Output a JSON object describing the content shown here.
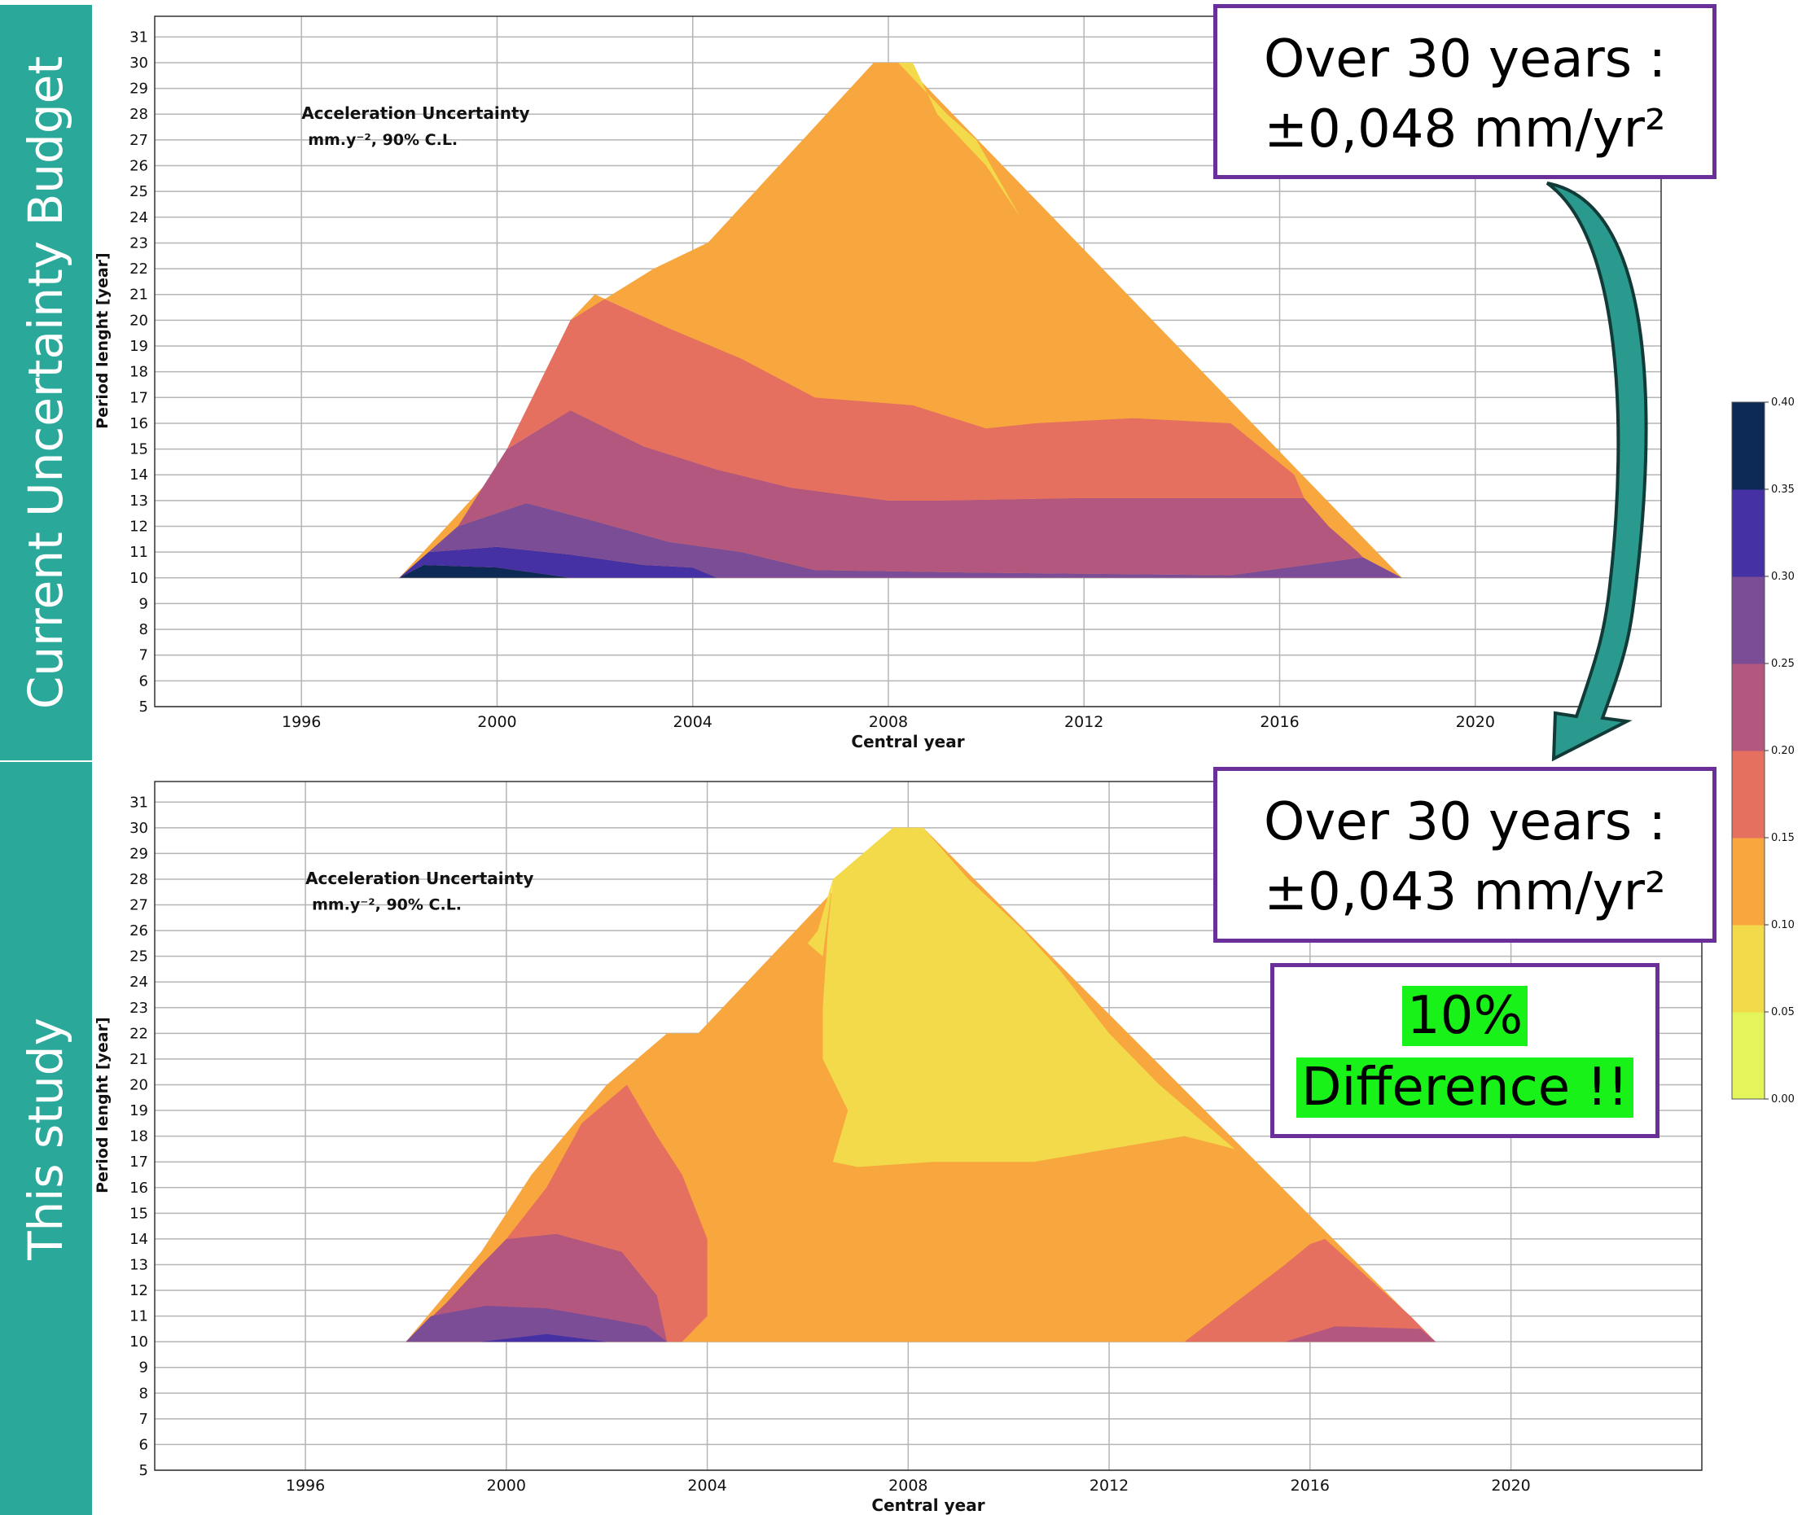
{
  "panel_labels": {
    "top": "Current Uncertainty Budget",
    "bottom": "This study"
  },
  "callouts": {
    "top_line1": "Over 30 years :",
    "top_line2": "±0,048 mm/yr²",
    "bottom_line1": "Over 30 years :",
    "bottom_line2": "±0,043 mm/yr²",
    "diff_line1": "10%",
    "diff_line2": "Difference !!"
  },
  "colors": {
    "band": "#2aa89a",
    "callout_border": "#6b2f9a",
    "highlight": "#19f219",
    "arrow": "#2a9a8e",
    "levels": [
      "#e3f55a",
      "#f2da4a",
      "#f8a63e",
      "#e6705f",
      "#b4577f",
      "#7c4d97",
      "#4530a4",
      "#0d2a57"
    ]
  },
  "colorbar": {
    "ticks": [
      "0.00",
      "0.05",
      "0.10",
      "0.15",
      "0.20",
      "0.25",
      "0.30",
      "0.35",
      "0.40"
    ],
    "min": 0,
    "max": 0.4
  },
  "chart_data": [
    {
      "type": "heatmap",
      "annotation_line1": "Acceleration Uncertainty",
      "annotation_line2": "mm.y⁻², 90% C.L.",
      "xlabel": "Central year",
      "ylabel": "Period lenght [year]",
      "xlim": [
        1993,
        2023.8
      ],
      "ylim": [
        5,
        31.8
      ],
      "xticks": [
        "1996",
        "2000",
        "2004",
        "2008",
        "2012",
        "2016",
        "2020"
      ],
      "yticks": [
        "5",
        "6",
        "7",
        "8",
        "9",
        "10",
        "11",
        "12",
        "13",
        "14",
        "15",
        "16",
        "17",
        "18",
        "19",
        "20",
        "21",
        "22",
        "23",
        "24",
        "25",
        "26",
        "27",
        "28",
        "29",
        "30",
        "31"
      ],
      "grid": true,
      "contour_levels_upper_bounds": [
        0.05,
        0.1,
        0.15,
        0.2,
        0.25,
        0.3,
        0.35,
        0.4
      ],
      "domain_polygon": [
        [
          1998,
          10
        ],
        [
          2007.7,
          30
        ],
        [
          2008.3,
          30
        ],
        [
          2018.5,
          10
        ]
      ],
      "regions": [
        {
          "level": 7,
          "points": [
            [
              1998,
              10
            ],
            [
              1998.5,
              10.5
            ],
            [
              2000,
              10.4
            ],
            [
              2001.5,
              10
            ]
          ]
        },
        {
          "level": 6,
          "points": [
            [
              1998,
              10
            ],
            [
              1998.6,
              11
            ],
            [
              2000,
              11.2
            ],
            [
              2001.5,
              10.9
            ],
            [
              2003,
              10.5
            ],
            [
              2004,
              10.4
            ],
            [
              2004.5,
              10
            ],
            [
              2001.5,
              10
            ],
            [
              2000,
              10.4
            ],
            [
              1998.5,
              10.5
            ]
          ]
        },
        {
          "level": 5,
          "points": [
            [
              1998.6,
              11
            ],
            [
              1999.2,
              12
            ],
            [
              2000.6,
              12.9
            ],
            [
              2002,
              12.2
            ],
            [
              2003.5,
              11.4
            ],
            [
              2005,
              11
            ],
            [
              2006.5,
              10.3
            ],
            [
              2010,
              10.2
            ],
            [
              2015,
              10.1
            ],
            [
              2017.7,
              10.8
            ],
            [
              2018.5,
              10
            ],
            [
              2004.5,
              10
            ],
            [
              2004,
              10.4
            ],
            [
              2003,
              10.5
            ],
            [
              2001.5,
              10.9
            ],
            [
              2000,
              11.2
            ]
          ]
        },
        {
          "level": 4,
          "points": [
            [
              1999.2,
              12
            ],
            [
              2000.6,
              12.9
            ],
            [
              2002,
              12.2
            ],
            [
              2003.5,
              11.4
            ],
            [
              2005,
              11
            ],
            [
              2006.5,
              10.3
            ],
            [
              2010,
              10.2
            ],
            [
              2015,
              10.1
            ],
            [
              2017.7,
              10.8
            ],
            [
              2017.6,
              11
            ],
            [
              2017,
              12
            ],
            [
              2016.5,
              13.1
            ],
            [
              2012,
              13.1
            ],
            [
              2009,
              13
            ],
            [
              2008,
              13
            ],
            [
              2006,
              13.5
            ],
            [
              2004.5,
              14.2
            ],
            [
              2003,
              15.1
            ],
            [
              2001.5,
              16.5
            ],
            [
              2000.2,
              15
            ]
          ]
        },
        {
          "level": 3,
          "points": [
            [
              2000.2,
              15
            ],
            [
              2001.5,
              16.5
            ],
            [
              2003,
              15.1
            ],
            [
              2004.5,
              14.2
            ],
            [
              2006,
              13.5
            ],
            [
              2008,
              13
            ],
            [
              2009,
              13
            ],
            [
              2012,
              13.1
            ],
            [
              2016.5,
              13.1
            ],
            [
              2016.3,
              14
            ],
            [
              2015,
              16
            ],
            [
              2013,
              16.2
            ],
            [
              2011,
              16
            ],
            [
              2010,
              15.8
            ],
            [
              2008.5,
              16.7
            ],
            [
              2006.5,
              17
            ],
            [
              2005,
              18.5
            ],
            [
              2003.5,
              19.7
            ],
            [
              2002,
              21
            ],
            [
              2001.5,
              20
            ]
          ]
        },
        {
          "level": 2,
          "points": [
            [
              2001.5,
              20
            ],
            [
              2002,
              21
            ],
            [
              2003.5,
              19.7
            ],
            [
              2005,
              18.5
            ],
            [
              2006.5,
              17
            ],
            [
              2008.5,
              16.7
            ],
            [
              2010,
              15.8
            ],
            [
              2011,
              16
            ],
            [
              2013,
              16.2
            ],
            [
              2015,
              16
            ],
            [
              2014.5,
              17
            ],
            [
              2013.7,
              18
            ],
            [
              2012.5,
              20
            ],
            [
              2011.5,
              22
            ],
            [
              2010.7,
              24
            ],
            [
              2010,
              26
            ],
            [
              2009,
              28
            ],
            [
              2008.4,
              30
            ],
            [
              2007.7,
              30
            ],
            [
              2006.8,
              28
            ],
            [
              2005.5,
              25
            ],
            [
              2004.3,
              23
            ],
            [
              2003.2,
              22
            ]
          ]
        },
        {
          "level": 1,
          "points": [
            [
              2008.2,
              30
            ],
            [
              2008.5,
              30
            ],
            [
              2009,
              28
            ],
            [
              2010,
              26
            ],
            [
              2010.7,
              24
            ],
            [
              2010.4,
              25
            ],
            [
              2009.8,
              27
            ],
            [
              2009.2,
              28
            ]
          ]
        }
      ]
    },
    {
      "type": "heatmap",
      "annotation_line1": "Acceleration Uncertainty",
      "annotation_line2": "mm.y⁻², 90% C.L.",
      "xlabel": "Central year",
      "ylabel": "Period lenght [year]",
      "xlim": [
        1993,
        2023.8
      ],
      "ylim": [
        5,
        31.8
      ],
      "xticks": [
        "1996",
        "2000",
        "2004",
        "2008",
        "2012",
        "2016",
        "2020"
      ],
      "yticks": [
        "5",
        "6",
        "7",
        "8",
        "9",
        "10",
        "11",
        "12",
        "13",
        "14",
        "15",
        "16",
        "17",
        "18",
        "19",
        "20",
        "21",
        "22",
        "23",
        "24",
        "25",
        "26",
        "27",
        "28",
        "29",
        "30",
        "31"
      ],
      "grid": true,
      "contour_levels_upper_bounds": [
        0.05,
        0.1,
        0.15,
        0.2,
        0.25,
        0.3,
        0.35,
        0.4
      ],
      "domain_polygon": [
        [
          1998,
          10
        ],
        [
          2007.7,
          30
        ],
        [
          2008.3,
          30
        ],
        [
          2018.5,
          10
        ]
      ],
      "regions": [
        {
          "level": 2,
          "points": [
            [
              1998,
              10
            ],
            [
              2018.5,
              10
            ],
            [
              2016.3,
              14
            ],
            [
              2015,
              16
            ],
            [
              2014,
              18.5
            ],
            [
              2012.5,
              21
            ],
            [
              2011.5,
              22
            ],
            [
              2003.2,
              22
            ],
            [
              2002,
              20
            ],
            [
              2000.5,
              16.5
            ],
            [
              1999.5,
              13.5
            ]
          ]
        },
        {
          "level": 4,
          "points": [
            [
              1998,
              10
            ],
            [
              1998.8,
              11.5
            ],
            [
              1999.5,
              13
            ],
            [
              2000,
              14
            ],
            [
              2001,
              14.2
            ],
            [
              2002.3,
              13.5
            ],
            [
              2003,
              11.8
            ],
            [
              2003.2,
              10
            ],
            [
              2000,
              10
            ]
          ]
        },
        {
          "level": 3,
          "points": [
            [
              2000,
              14
            ],
            [
              2001,
              14.2
            ],
            [
              2002.3,
              13.5
            ],
            [
              2003,
              11.8
            ],
            [
              2003.2,
              10
            ],
            [
              2003.5,
              10
            ],
            [
              2004,
              11
            ],
            [
              2004,
              14
            ],
            [
              2003.5,
              16.5
            ],
            [
              2003,
              18
            ],
            [
              2002.4,
              20
            ],
            [
              2001.5,
              18.5
            ],
            [
              2000.8,
              16
            ]
          ]
        },
        {
          "level": 5,
          "points": [
            [
              1998,
              10
            ],
            [
              1998.5,
              11
            ],
            [
              1999.6,
              11.4
            ],
            [
              2000.8,
              11.3
            ],
            [
              2002,
              10.9
            ],
            [
              2002.8,
              10.6
            ],
            [
              2003.2,
              10
            ]
          ]
        },
        {
          "level": 6,
          "points": [
            [
              1999.5,
              10
            ],
            [
              2000.8,
              10.3
            ],
            [
              2002,
              10
            ]
          ]
        },
        {
          "level": 3,
          "points": [
            [
              2013.5,
              10
            ],
            [
              2014.5,
              11.5
            ],
            [
              2015.5,
              13
            ],
            [
              2016,
              13.8
            ],
            [
              2016.3,
              14
            ],
            [
              2018,
              11
            ],
            [
              2018.5,
              10
            ]
          ]
        },
        {
          "level": 4,
          "points": [
            [
              2015.5,
              10
            ],
            [
              2016.5,
              10.6
            ],
            [
              2018.2,
              10.5
            ],
            [
              2018.5,
              10
            ]
          ]
        },
        {
          "level": 1,
          "points": [
            [
              2007.7,
              30
            ],
            [
              2008.3,
              30
            ],
            [
              2009.2,
              28
            ],
            [
              2010.3,
              26
            ],
            [
              2011,
              24.5
            ],
            [
              2012,
              22
            ],
            [
              2013,
              20
            ],
            [
              2014.5,
              17.5
            ],
            [
              2013.5,
              18
            ],
            [
              2012,
              17.5
            ],
            [
              2010.5,
              17
            ],
            [
              2008.5,
              17
            ],
            [
              2007,
              16.8
            ],
            [
              2006.5,
              17
            ],
            [
              2006.8,
              19
            ],
            [
              2006.3,
              21
            ],
            [
              2006.3,
              23
            ],
            [
              2006.4,
              26
            ],
            [
              2006.5,
              28
            ]
          ]
        },
        {
          "level": 1,
          "points": [
            [
              2006.5,
              28
            ],
            [
              2006.2,
              26
            ],
            [
              2006,
              25.5
            ],
            [
              2006.3,
              25
            ]
          ]
        }
      ]
    }
  ]
}
